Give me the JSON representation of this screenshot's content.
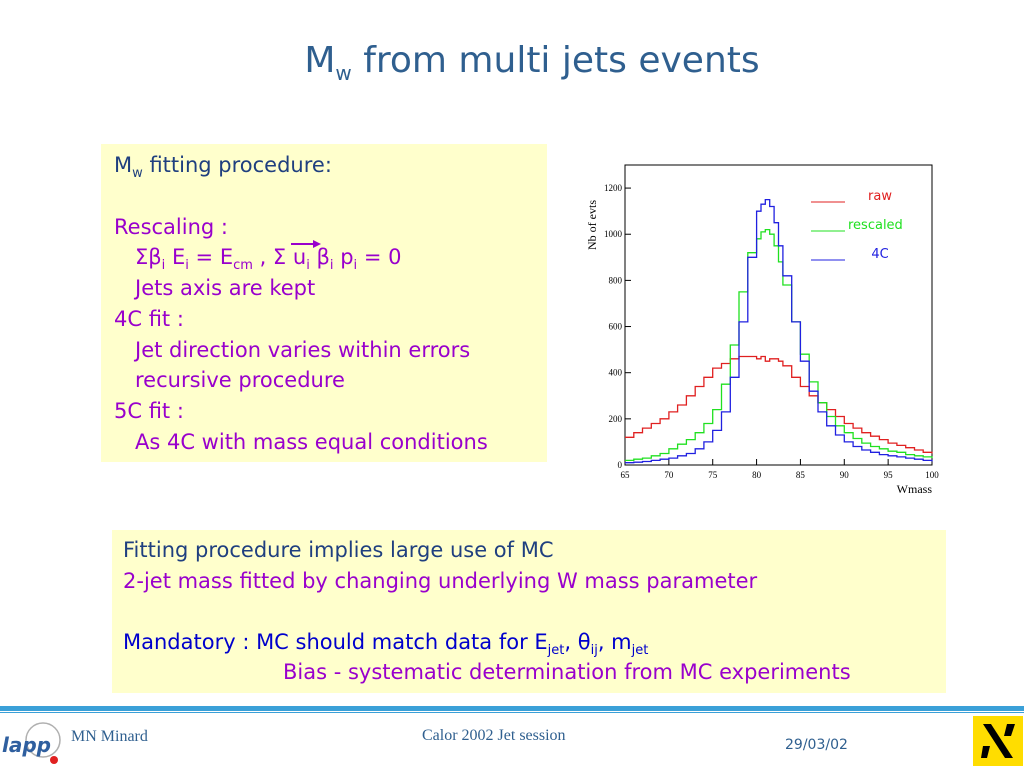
{
  "slide": {
    "title_main": "M",
    "title_sub": "w",
    "title_rest": " from multi jets events"
  },
  "box1": {
    "line1_main": "M",
    "line1_sub": "w",
    "line1_rest": " fitting procedure:",
    "rescaling": "Rescaling :",
    "eq_part1": "Σβ",
    "eq_sub_i1": "i",
    "eq_part2": " E",
    "eq_sub_i2": "i",
    "eq_part3": " = E",
    "eq_sub_cm": "cm",
    "eq_part4": " , Σ ",
    "eq_u": "u",
    "eq_sub_i3": "i",
    "eq_part5": " β",
    "eq_sub_i4": "i",
    "eq_part6": " p",
    "eq_sub_i5": "i",
    "eq_part7": " = 0",
    "jets_axis": "Jets axis are kept",
    "fit4c": "4C fit :",
    "jet_direction": "Jet direction varies within errors",
    "recursive": "recursive procedure",
    "fit5c": "5C fit :",
    "as4c": "As 4C with mass equal conditions"
  },
  "box2": {
    "line1": "Fitting procedure implies large use of MC",
    "line2": "2-jet mass fitted by changing underlying W mass parameter",
    "mand_a": "Mandatory : MC should match data for E",
    "mand_sub_jet1": "jet",
    "mand_b": ", θ",
    "mand_sub_ij": "ij",
    "mand_c": ", m",
    "mand_sub_jet2": "jet",
    "bias": "Bias -  systematic determination from MC experiments"
  },
  "footer": {
    "author": "MN Minard",
    "session": "Calor 2002 Jet session",
    "date": "29/03/02",
    "logo_text": "lapp"
  },
  "chart_data": {
    "type": "line",
    "xlabel": "Wmass",
    "ylabel": "Nb of evts",
    "xlim": [
      65,
      100
    ],
    "ylim": [
      0,
      1300
    ],
    "x_ticks": [
      65,
      70,
      75,
      80,
      85,
      90,
      95,
      100
    ],
    "y_ticks": [
      0,
      200,
      400,
      600,
      800,
      1000,
      1200
    ],
    "legend_position": "top-right",
    "x": [
      65,
      66,
      67,
      68,
      69,
      70,
      71,
      72,
      73,
      74,
      75,
      76,
      77,
      78,
      79,
      80,
      80.5,
      81,
      81.5,
      82,
      82.5,
      83,
      84,
      85,
      86,
      87,
      88,
      89,
      90,
      91,
      92,
      93,
      94,
      95,
      96,
      97,
      98,
      99,
      100
    ],
    "series": [
      {
        "name": "raw",
        "color": "#e02020",
        "values": [
          120,
          140,
          160,
          180,
          200,
          230,
          260,
          300,
          340,
          380,
          420,
          440,
          460,
          470,
          470,
          460,
          470,
          450,
          460,
          460,
          450,
          430,
          380,
          340,
          300,
          270,
          240,
          210,
          180,
          160,
          140,
          125,
          110,
          95,
          85,
          75,
          65,
          55,
          50
        ]
      },
      {
        "name": "rescaled",
        "color": "#20e020",
        "values": [
          20,
          25,
          30,
          40,
          50,
          70,
          90,
          110,
          140,
          180,
          240,
          350,
          520,
          750,
          920,
          980,
          1010,
          1020,
          1000,
          950,
          880,
          780,
          620,
          480,
          360,
          270,
          210,
          170,
          140,
          115,
          95,
          80,
          70,
          60,
          55,
          45,
          40,
          35,
          30
        ]
      },
      {
        "name": "4C",
        "color": "#2020e0",
        "values": [
          10,
          12,
          15,
          20,
          25,
          30,
          40,
          50,
          70,
          100,
          150,
          230,
          380,
          620,
          900,
          1100,
          1130,
          1150,
          1120,
          1050,
          950,
          820,
          620,
          450,
          320,
          230,
          170,
          130,
          100,
          80,
          65,
          55,
          45,
          40,
          35,
          30,
          25,
          20,
          15
        ]
      }
    ]
  }
}
